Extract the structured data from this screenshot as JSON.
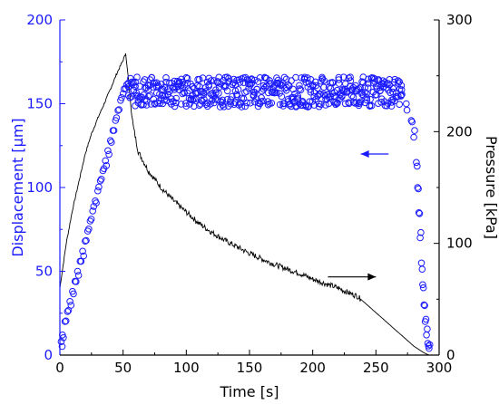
{
  "chart_data": {
    "type": "scatter",
    "xlabel": "Time [s]",
    "ylabel_left": "Displacement [μm]",
    "ylabel_right": "Pressure [kPa]",
    "xlim": [
      0,
      300
    ],
    "ylim_left": [
      0,
      200
    ],
    "ylim_right": [
      0,
      300
    ],
    "x_ticks": [
      "0",
      "50",
      "100",
      "150",
      "200",
      "250",
      "300"
    ],
    "y_left_ticks": [
      "0",
      "50",
      "100",
      "150",
      "200"
    ],
    "y_right_ticks": [
      "0",
      "100",
      "200",
      "300"
    ],
    "grid": false,
    "colors": {
      "displacement": "#1a1aff",
      "pressure": "#000000",
      "axis": "#000000"
    },
    "series": [
      {
        "axis": "left",
        "marker": "circle",
        "points": [
          [
            1,
            8
          ],
          [
            2,
            12
          ],
          [
            4,
            20
          ],
          [
            6,
            26
          ],
          [
            8,
            32
          ],
          [
            10,
            38
          ],
          [
            12,
            44
          ],
          [
            14,
            50
          ],
          [
            16,
            56
          ],
          [
            18,
            62
          ],
          [
            20,
            68
          ],
          [
            22,
            74
          ],
          [
            24,
            80
          ],
          [
            26,
            86
          ],
          [
            28,
            92
          ],
          [
            30,
            98
          ],
          [
            32,
            104
          ],
          [
            34,
            110
          ],
          [
            36,
            116
          ],
          [
            38,
            122
          ],
          [
            40,
            128
          ],
          [
            42,
            134
          ],
          [
            44,
            140
          ],
          [
            46,
            146
          ],
          [
            48,
            152
          ],
          [
            50,
            156
          ],
          [
            52,
            159
          ],
          [
            54,
            162
          ]
        ],
        "plateau": {
          "x_start": 54,
          "x_end": 270,
          "center": 157,
          "spread": 9
        },
        "tail": [
          [
            270,
            155
          ],
          [
            274,
            150
          ],
          [
            278,
            140
          ],
          [
            280,
            130
          ],
          [
            282,
            115
          ],
          [
            283,
            100
          ],
          [
            284,
            85
          ],
          [
            285,
            70
          ],
          [
            286,
            55
          ],
          [
            287,
            42
          ],
          [
            288,
            30
          ],
          [
            289,
            20
          ],
          [
            290,
            12
          ],
          [
            291,
            7
          ],
          [
            292,
            4
          ]
        ]
      },
      {
        "axis": "right",
        "line": true,
        "points": [
          [
            0,
            60
          ],
          [
            5,
            100
          ],
          [
            10,
            130
          ],
          [
            15,
            155
          ],
          [
            20,
            180
          ],
          [
            25,
            198
          ],
          [
            30,
            212
          ],
          [
            35,
            225
          ],
          [
            40,
            238
          ],
          [
            45,
            252
          ],
          [
            50,
            264
          ],
          [
            52,
            270
          ],
          [
            54,
            250
          ],
          [
            56,
            225
          ],
          [
            58,
            205
          ],
          [
            62,
            182
          ],
          [
            70,
            165
          ],
          [
            80,
            150
          ],
          [
            90,
            138
          ],
          [
            100,
            128
          ],
          [
            110,
            118
          ],
          [
            120,
            110
          ],
          [
            130,
            103
          ],
          [
            140,
            97
          ],
          [
            150,
            91
          ],
          [
            160,
            86
          ],
          [
            170,
            81
          ],
          [
            180,
            77
          ],
          [
            190,
            73
          ],
          [
            200,
            68
          ],
          [
            210,
            64
          ],
          [
            220,
            60
          ],
          [
            230,
            55
          ],
          [
            235,
            53
          ],
          [
            240,
            48
          ],
          [
            250,
            38
          ],
          [
            260,
            28
          ],
          [
            270,
            18
          ],
          [
            280,
            8
          ],
          [
            288,
            2
          ],
          [
            292,
            0
          ]
        ]
      }
    ],
    "annotations": [
      {
        "type": "arrow",
        "axis": "left",
        "from": [
          260,
          120
        ],
        "to": [
          238,
          120
        ]
      },
      {
        "type": "arrow",
        "axis": "right",
        "from": [
          212,
          70
        ],
        "to": [
          250,
          70
        ]
      }
    ]
  }
}
